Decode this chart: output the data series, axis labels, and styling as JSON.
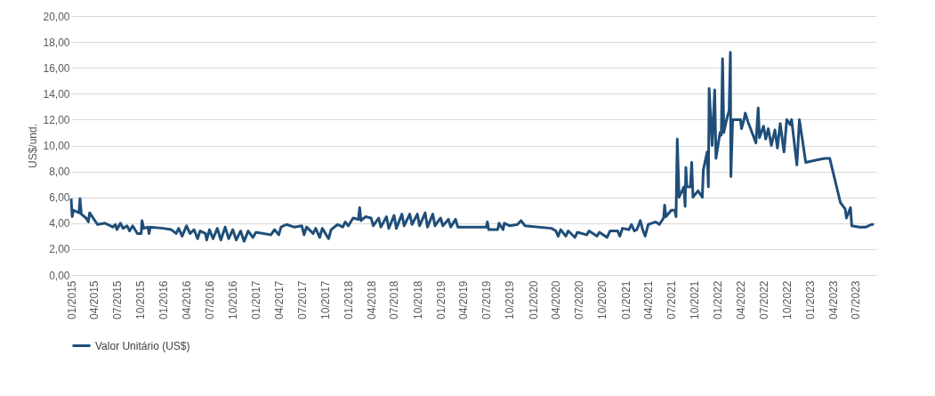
{
  "chart_data": {
    "type": "line",
    "ylabel": "US$/und.",
    "x": [
      "2015-01-01",
      "2015-01-05",
      "2015-01-10",
      "2015-02-01",
      "2015-02-05",
      "2015-02-10",
      "2015-03-01",
      "2015-03-10",
      "2015-03-15",
      "2015-04-15",
      "2015-05-15",
      "2015-06-15",
      "2015-06-25",
      "2015-07-01",
      "2015-07-15",
      "2015-07-25",
      "2015-08-10",
      "2015-08-20",
      "2015-09-01",
      "2015-09-20",
      "2015-10-05",
      "2015-10-08",
      "2015-10-15",
      "2015-11-01",
      "2015-11-05",
      "2015-11-10",
      "2016-01-01",
      "2016-02-01",
      "2016-02-20",
      "2016-03-01",
      "2016-03-15",
      "2016-04-01",
      "2016-04-15",
      "2016-05-01",
      "2016-05-15",
      "2016-05-25",
      "2016-06-15",
      "2016-06-20",
      "2016-07-01",
      "2016-07-15",
      "2016-08-01",
      "2016-08-15",
      "2016-09-01",
      "2016-09-15",
      "2016-10-01",
      "2016-10-15",
      "2016-11-01",
      "2016-11-15",
      "2016-12-01",
      "2016-12-20",
      "2017-01-01",
      "2017-03-01",
      "2017-03-15",
      "2017-04-01",
      "2017-04-10",
      "2017-05-01",
      "2017-06-01",
      "2017-07-01",
      "2017-07-10",
      "2017-07-20",
      "2017-08-15",
      "2017-08-25",
      "2017-09-10",
      "2017-09-20",
      "2017-10-15",
      "2017-10-25",
      "2017-11-20",
      "2017-12-10",
      "2017-12-20",
      "2018-01-01",
      "2018-01-20",
      "2018-02-10",
      "2018-02-15",
      "2018-02-20",
      "2018-03-10",
      "2018-04-01",
      "2018-04-10",
      "2018-05-01",
      "2018-05-10",
      "2018-06-01",
      "2018-06-10",
      "2018-07-01",
      "2018-07-10",
      "2018-08-01",
      "2018-08-10",
      "2018-09-01",
      "2018-09-10",
      "2018-10-01",
      "2018-10-10",
      "2018-11-01",
      "2018-11-10",
      "2018-12-01",
      "2018-12-10",
      "2019-01-01",
      "2019-01-10",
      "2019-02-01",
      "2019-02-10",
      "2019-03-01",
      "2019-03-10",
      "2019-05-01",
      "2019-06-01",
      "2019-07-01",
      "2019-07-05",
      "2019-07-10",
      "2019-08-15",
      "2019-08-20",
      "2019-09-05",
      "2019-09-10",
      "2019-10-01",
      "2019-11-01",
      "2019-11-15",
      "2019-12-01",
      "2020-03-15",
      "2020-04-01",
      "2020-04-10",
      "2020-04-20",
      "2020-05-10",
      "2020-05-20",
      "2020-06-15",
      "2020-06-25",
      "2020-08-01",
      "2020-08-10",
      "2020-09-10",
      "2020-09-20",
      "2020-10-20",
      "2020-11-01",
      "2020-12-01",
      "2020-12-10",
      "2020-12-20",
      "2021-01-15",
      "2021-01-25",
      "2021-02-05",
      "2021-02-15",
      "2021-03-01",
      "2021-03-10",
      "2021-03-20",
      "2021-04-01",
      "2021-05-01",
      "2021-05-15",
      "2021-06-01",
      "2021-06-05",
      "2021-06-10",
      "2021-07-01",
      "2021-07-15",
      "2021-07-20",
      "2021-07-25",
      "2021-08-01",
      "2021-08-20",
      "2021-08-25",
      "2021-08-28",
      "2021-09-01",
      "2021-09-15",
      "2021-09-20",
      "2021-09-25",
      "2021-10-15",
      "2021-11-01",
      "2021-11-05",
      "2021-11-20",
      "2021-11-25",
      "2021-11-28",
      "2021-12-10",
      "2021-12-20",
      "2021-12-25",
      "2022-01-10",
      "2022-01-15",
      "2022-01-20",
      "2022-01-25",
      "2022-02-05",
      "2022-02-15",
      "2022-02-20",
      "2022-02-22",
      "2022-03-01",
      "2022-04-01",
      "2022-04-05",
      "2022-04-15",
      "2022-04-20",
      "2022-05-01",
      "2022-06-01",
      "2022-06-10",
      "2022-06-15",
      "2022-07-01",
      "2022-07-10",
      "2022-07-20",
      "2022-08-01",
      "2022-08-15",
      "2022-08-25",
      "2022-09-05",
      "2022-09-20",
      "2022-10-01",
      "2022-10-15",
      "2022-10-20",
      "2022-11-10",
      "2022-11-20",
      "2022-12-15",
      "2023-02-01",
      "2023-03-01",
      "2023-03-20",
      "2023-05-01",
      "2023-05-20",
      "2023-05-25",
      "2023-06-10",
      "2023-06-15",
      "2023-07-15",
      "2023-08-10",
      "2023-09-01",
      "2023-09-10"
    ],
    "series": [
      {
        "name": "Valor Unitário (US$)",
        "color": "#1f4e79",
        "values": [
          5.9,
          4.5,
          5.0,
          4.8,
          5.9,
          4.7,
          4.4,
          4.1,
          4.8,
          3.9,
          4.0,
          3.7,
          3.9,
          3.5,
          4.0,
          3.6,
          3.8,
          3.4,
          3.8,
          3.2,
          3.2,
          4.2,
          3.6,
          3.7,
          3.2,
          3.7,
          3.6,
          3.5,
          3.2,
          3.6,
          3.0,
          3.8,
          3.2,
          3.5,
          2.8,
          3.4,
          3.2,
          2.7,
          3.5,
          2.8,
          3.6,
          2.7,
          3.7,
          2.8,
          3.5,
          2.7,
          3.4,
          2.6,
          3.4,
          2.9,
          3.3,
          3.1,
          3.5,
          3.1,
          3.7,
          3.9,
          3.7,
          3.8,
          3.1,
          3.7,
          3.2,
          3.6,
          2.9,
          3.6,
          2.8,
          3.5,
          3.9,
          3.7,
          4.1,
          3.8,
          4.4,
          4.3,
          5.2,
          4.2,
          4.5,
          4.4,
          3.8,
          4.4,
          3.7,
          4.5,
          3.6,
          4.6,
          3.6,
          4.7,
          3.8,
          4.7,
          3.9,
          4.7,
          3.8,
          4.8,
          3.7,
          4.7,
          3.8,
          4.4,
          3.8,
          4.3,
          3.7,
          4.3,
          3.7,
          3.7,
          3.7,
          3.7,
          4.1,
          3.5,
          3.5,
          4.0,
          3.5,
          4.0,
          3.8,
          3.9,
          4.2,
          3.8,
          3.6,
          3.4,
          3.0,
          3.5,
          3.0,
          3.4,
          2.9,
          3.3,
          3.1,
          3.4,
          3.0,
          3.3,
          2.9,
          3.4,
          3.4,
          3.0,
          3.6,
          3.5,
          3.9,
          3.4,
          3.5,
          4.2,
          3.5,
          3.0,
          3.9,
          4.1,
          3.9,
          4.4,
          5.4,
          4.5,
          5.0,
          5.0,
          4.5,
          10.5,
          6.0,
          6.8,
          5.3,
          8.3,
          6.8,
          6.8,
          8.7,
          6.0,
          6.5,
          6.0,
          8.1,
          9.5,
          6.8,
          14.4,
          10.0,
          14.3,
          9.0,
          11.0,
          10.8,
          16.7,
          11.0,
          12.0,
          12.7,
          17.2,
          7.6,
          12.0,
          12.0,
          11.3,
          12.0,
          12.5,
          11.8,
          10.2,
          12.9,
          10.6,
          11.5,
          10.5,
          11.3,
          10.0,
          11.2,
          9.8,
          11.7,
          9.5,
          12.0,
          11.6,
          12.0,
          8.5,
          12.0,
          8.7,
          8.9,
          9.0,
          9.0,
          5.6,
          5.1,
          4.4,
          5.2,
          3.8,
          3.7,
          3.7,
          3.9,
          3.9
        ]
      }
    ],
    "xlim": [
      "2015-01-01",
      "2023-09-20"
    ],
    "xticks": [
      {
        "value": "2015-01",
        "label": "01/2015"
      },
      {
        "value": "2015-04",
        "label": "04/2015"
      },
      {
        "value": "2015-07",
        "label": "07/2015"
      },
      {
        "value": "2015-10",
        "label": "10/2015"
      },
      {
        "value": "2016-01",
        "label": "01/2016"
      },
      {
        "value": "2016-04",
        "label": "04/2016"
      },
      {
        "value": "2016-07",
        "label": "07/2016"
      },
      {
        "value": "2016-10",
        "label": "10/2016"
      },
      {
        "value": "2017-01",
        "label": "01/2017"
      },
      {
        "value": "2017-04",
        "label": "04/2017"
      },
      {
        "value": "2017-07",
        "label": "07/2017"
      },
      {
        "value": "2017-10",
        "label": "10/2017"
      },
      {
        "value": "2018-01",
        "label": "01/2018"
      },
      {
        "value": "2018-04",
        "label": "04/2018"
      },
      {
        "value": "2018-07",
        "label": "07/2018"
      },
      {
        "value": "2018-10",
        "label": "10/2018"
      },
      {
        "value": "2019-01",
        "label": "01/2019"
      },
      {
        "value": "2019-04",
        "label": "04/2019"
      },
      {
        "value": "2019-07",
        "label": "07/2019"
      },
      {
        "value": "2019-10",
        "label": "10/2019"
      },
      {
        "value": "2020-01",
        "label": "01/2020"
      },
      {
        "value": "2020-04",
        "label": "04/2020"
      },
      {
        "value": "2020-07",
        "label": "07/2020"
      },
      {
        "value": "2020-10",
        "label": "10/2020"
      },
      {
        "value": "2021-01",
        "label": "01/2021"
      },
      {
        "value": "2021-04",
        "label": "04/2021"
      },
      {
        "value": "2021-07",
        "label": "07/2021"
      },
      {
        "value": "2021-10",
        "label": "10/2021"
      },
      {
        "value": "2022-01",
        "label": "01/2022"
      },
      {
        "value": "2022-04",
        "label": "04/2022"
      },
      {
        "value": "2022-07",
        "label": "07/2022"
      },
      {
        "value": "2022-10",
        "label": "10/2022"
      },
      {
        "value": "2023-01",
        "label": "01/2023"
      },
      {
        "value": "2023-04",
        "label": "04/2023"
      },
      {
        "value": "2023-07",
        "label": "07/2023"
      }
    ],
    "ylim": [
      0,
      20
    ],
    "yticks": [
      {
        "value": 0,
        "label": "0,00"
      },
      {
        "value": 2,
        "label": "2,00"
      },
      {
        "value": 4,
        "label": "4,00"
      },
      {
        "value": 6,
        "label": "6,00"
      },
      {
        "value": 8,
        "label": "8,00"
      },
      {
        "value": 10,
        "label": "10,00"
      },
      {
        "value": 12,
        "label": "12,00"
      },
      {
        "value": 14,
        "label": "14,00"
      },
      {
        "value": 16,
        "label": "16,00"
      },
      {
        "value": 18,
        "label": "18,00"
      },
      {
        "value": 20,
        "label": "20,00"
      }
    ],
    "grid": "y",
    "legend": "bottom",
    "line_style": "solid",
    "marker": "none"
  }
}
